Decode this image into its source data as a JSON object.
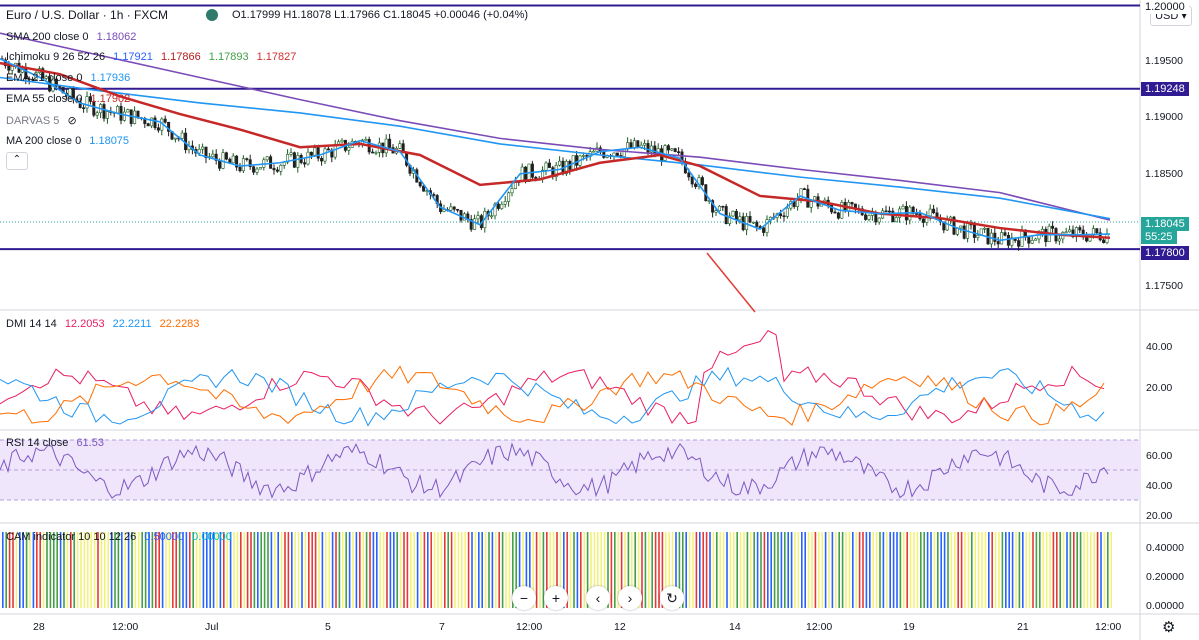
{
  "header": {
    "symbol": "Euro / U.S. Dollar · 1h · FXCM",
    "ohlc": "O1.17999 H1.18078 L1.17966 C1.18045 +0.00046 (+0.04%)"
  },
  "currency_button": "USD ▾",
  "legends": {
    "sma200": {
      "name": "SMA 200 close 0",
      "value": "1.18062",
      "color": "#7b4cb7"
    },
    "ichimoku": {
      "name": "Ichimoku 9 26 52 26",
      "v1": "1.17921",
      "v2": "1.17866",
      "v3": "1.17893",
      "v4": "1.17827",
      "c1": "#2962ff",
      "c2": "#b71c1c",
      "c3": "#43a047",
      "c4": "#d32f2f"
    },
    "ema21": {
      "name": "EMA 21 close 0",
      "value": "1.17936",
      "color": "#2196f3"
    },
    "ema55": {
      "name": "EMA 55 close 0",
      "value": "1.17902",
      "color": "#c62828"
    },
    "darvas": {
      "name": "DARVAS 5"
    },
    "ma200": {
      "name": "MA 200 close 0",
      "value": "1.18075",
      "color": "#2196f3"
    },
    "dmi": {
      "name": "DMI 14 14",
      "v1": "12.2053",
      "v2": "22.2211",
      "v3": "22.2283",
      "c1": "#e91e63",
      "c2": "#2196f3",
      "c3": "#ff6d00"
    },
    "rsi": {
      "name": "RSI 14 close",
      "value": "61.53",
      "color": "#7e57c2"
    },
    "cam": {
      "name": "CAM indicator 10 10 12 26",
      "v1": "0.50000",
      "v2": "0.00000",
      "c1": "#2962ff",
      "c2": "#00bcd4"
    }
  },
  "price_tags": {
    "upper": "1.20000",
    "res1": "1.19248",
    "last": "1.18045",
    "countdown": "55:25",
    "sup1": "1.17800"
  },
  "price_axis": [
    "1.19500",
    "1.19000",
    "1.18500",
    "1.17500"
  ],
  "dmi_axis": [
    "40.00",
    "20.00"
  ],
  "rsi_axis": [
    "60.00",
    "40.00",
    "20.00"
  ],
  "cam_axis": [
    "0.40000",
    "0.20000",
    "0.00000"
  ],
  "time_axis": [
    "28",
    "12:00",
    "Jul",
    "5",
    "7",
    "12:00",
    "12",
    "14",
    "12:00",
    "19",
    "21",
    "12:00"
  ],
  "toolbar": {
    "zoom_out": "−",
    "zoom_in": "+",
    "left": "‹",
    "right": "›",
    "reset": "↻"
  },
  "chart_data": {
    "type": "line",
    "title": "Euro / U.S. Dollar · 1h · FXCM",
    "ylim": [
      1.1725,
      1.2005
    ],
    "horizontal_levels": [
      1.2,
      1.19248,
      1.178
    ],
    "last_price": 1.18045,
    "series": [
      {
        "name": "SMA 200 close 0",
        "color": "#7b4cb7",
        "x": [
          0,
          100,
          200,
          300,
          400,
          500,
          600,
          700,
          800,
          900,
          1000,
          1110
        ],
        "y": [
          1.1975,
          1.1955,
          1.1935,
          1.1915,
          1.1896,
          1.188,
          1.187,
          1.1863,
          1.1852,
          1.1842,
          1.1831,
          1.18062
        ]
      },
      {
        "name": "MA 200 close 0",
        "color": "#2196f3",
        "x": [
          0,
          100,
          200,
          300,
          400,
          500,
          600,
          700,
          800,
          900,
          1000,
          1110
        ],
        "y": [
          1.1935,
          1.1923,
          1.1912,
          1.1903,
          1.1891,
          1.1875,
          1.1865,
          1.1856,
          1.1845,
          1.1836,
          1.1826,
          1.18075
        ]
      },
      {
        "name": "EMA 55 close 0",
        "color": "#c62828",
        "x": [
          0,
          60,
          120,
          180,
          240,
          300,
          360,
          420,
          480,
          540,
          600,
          660,
          700,
          760,
          820,
          880,
          940,
          1000,
          1060,
          1110
        ],
        "y": [
          1.1948,
          1.1938,
          1.1918,
          1.1902,
          1.1888,
          1.1872,
          1.1875,
          1.1865,
          1.1838,
          1.1843,
          1.1858,
          1.1865,
          1.1855,
          1.1828,
          1.1823,
          1.1812,
          1.1808,
          1.1799,
          1.1793,
          1.17902
        ]
      },
      {
        "name": "EMA 21 close 0",
        "color": "#2196f3",
        "x": [
          0,
          40,
          80,
          120,
          160,
          200,
          240,
          280,
          320,
          360,
          400,
          440,
          480,
          520,
          560,
          600,
          640,
          680,
          720,
          760,
          800,
          840,
          880,
          920,
          960,
          1000,
          1040,
          1080,
          1110
        ],
        "y": [
          1.1952,
          1.1935,
          1.1912,
          1.1902,
          1.1895,
          1.1865,
          1.1855,
          1.1858,
          1.1865,
          1.1878,
          1.1868,
          1.1818,
          1.1802,
          1.1848,
          1.1852,
          1.1868,
          1.1872,
          1.1862,
          1.1812,
          1.1798,
          1.1828,
          1.1815,
          1.1812,
          1.1813,
          1.1798,
          1.1788,
          1.1793,
          1.1793,
          1.17936
        ]
      }
    ]
  }
}
